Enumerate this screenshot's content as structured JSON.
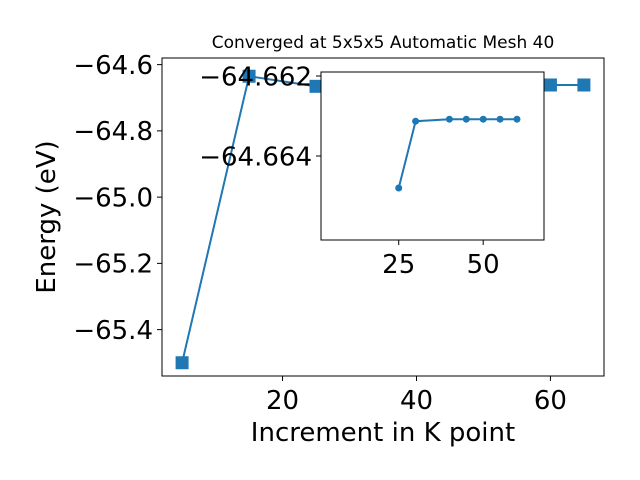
{
  "chart_data": [
    {
      "type": "line",
      "title": "Converged at 5x5x5 Automatic Mesh 40",
      "xlabel": "Increment in K point",
      "ylabel": "Energy (eV)",
      "xlim": [
        2,
        68
      ],
      "ylim": [
        -65.54,
        -64.58
      ],
      "xticks": [
        20,
        40,
        60
      ],
      "yticks": [
        -65.4,
        -65.2,
        -65.0,
        -64.8,
        -64.6
      ],
      "ytick_labels": [
        "−65.4",
        "−65.2",
        "−65.0",
        "−64.8",
        "−64.6"
      ],
      "marker": "square",
      "color": "#1f77b4",
      "grid": false,
      "series": [
        {
          "x": [
            5,
            15,
            25,
            30,
            35,
            40,
            45,
            50,
            55,
            60,
            65
          ],
          "y": [
            -65.5,
            -64.635,
            -64.6655,
            -64.6619,
            -64.6615,
            -64.6615,
            -64.6615,
            -64.6615,
            -64.6615,
            -64.6615,
            -64.6615
          ]
        }
      ]
    },
    {
      "type": "line",
      "title": "",
      "xlabel": "",
      "ylabel": "",
      "xlim": [
        2,
        68
      ],
      "ylim": [
        -64.6661,
        -64.6619
      ],
      "xticks": [
        25,
        50
      ],
      "yticks": [
        -64.664,
        -64.662
      ],
      "ytick_labels": [
        "−64.664",
        "−64.662"
      ],
      "marker": "circle",
      "color": "#1f77b4",
      "grid": false,
      "series": [
        {
          "x": [
            25,
            30,
            40,
            45,
            50,
            55,
            60
          ],
          "y": [
            -64.6648,
            -64.66313,
            -64.66308,
            -64.66308,
            -64.66308,
            -64.66308,
            -64.66308
          ]
        }
      ]
    }
  ]
}
